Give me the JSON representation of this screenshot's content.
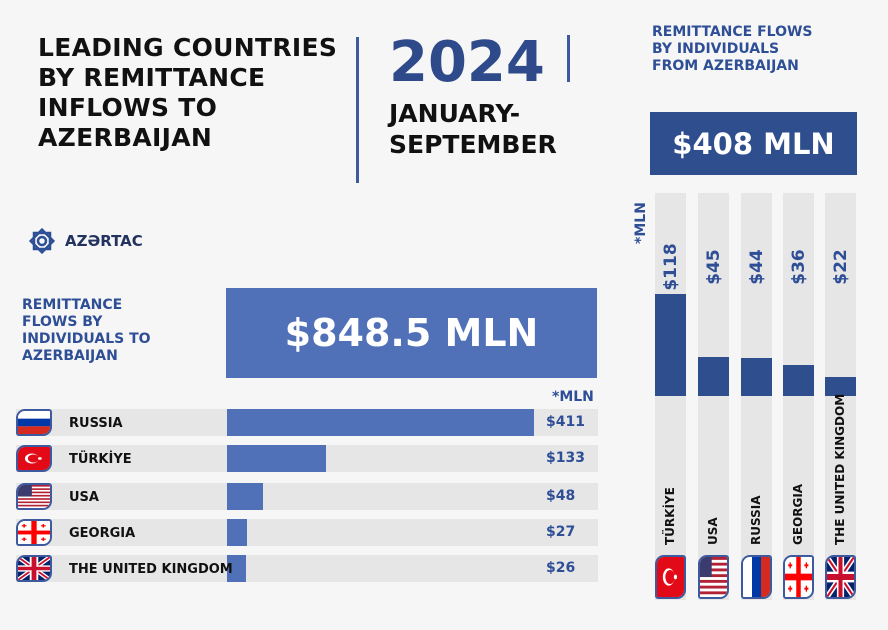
{
  "header": {
    "title": "LEADING COUNTRIES\nBY REMITTANCE\nINFLOWS TO\nAZERBAIJAN",
    "year": "2024",
    "period": "JANUARY-\nSEPTEMBER"
  },
  "logo": {
    "text": "AZƏRTAC"
  },
  "colors": {
    "dark_blue": "#2e4e8e",
    "light_blue": "#5070b8",
    "track": "#e6e6e6"
  },
  "chart_data": [
    {
      "type": "bar",
      "orientation": "horizontal",
      "title": "REMITTANCE\nFLOWS BY\nINDIVIDUALS TO\nAZERBAIJAN",
      "total": "$848.5 MLN",
      "unit": "*MLN",
      "categories": [
        "RUSSIA",
        "TÜRKİYE",
        "USA",
        "GEORGIA",
        "THE UNITED KINGDOM"
      ],
      "flags": [
        "russia-flag",
        "turkiye-flag",
        "usa-flag",
        "georgia-flag",
        "uk-flag"
      ],
      "values": [
        411,
        133,
        48,
        27,
        26
      ],
      "labels": [
        "$411",
        "$133",
        "$48",
        "$27",
        "$26"
      ]
    },
    {
      "type": "bar",
      "orientation": "vertical",
      "title": "REMITTANCE FLOWS\nBY INDIVIDUALS\nFROM AZERBAIJAN",
      "total": "$408 MLN",
      "unit": "*MLN",
      "categories": [
        "TÜRKİYE",
        "USA",
        "RUSSIA",
        "GEORGIA",
        "THE UNITED KINGDOM"
      ],
      "flags": [
        "turkiye-flag",
        "usa-flag",
        "russia-flag",
        "georgia-flag",
        "uk-flag"
      ],
      "values": [
        118,
        45,
        44,
        36,
        22
      ],
      "labels": [
        "$118",
        "$45",
        "$44",
        "$36",
        "$22"
      ]
    }
  ]
}
